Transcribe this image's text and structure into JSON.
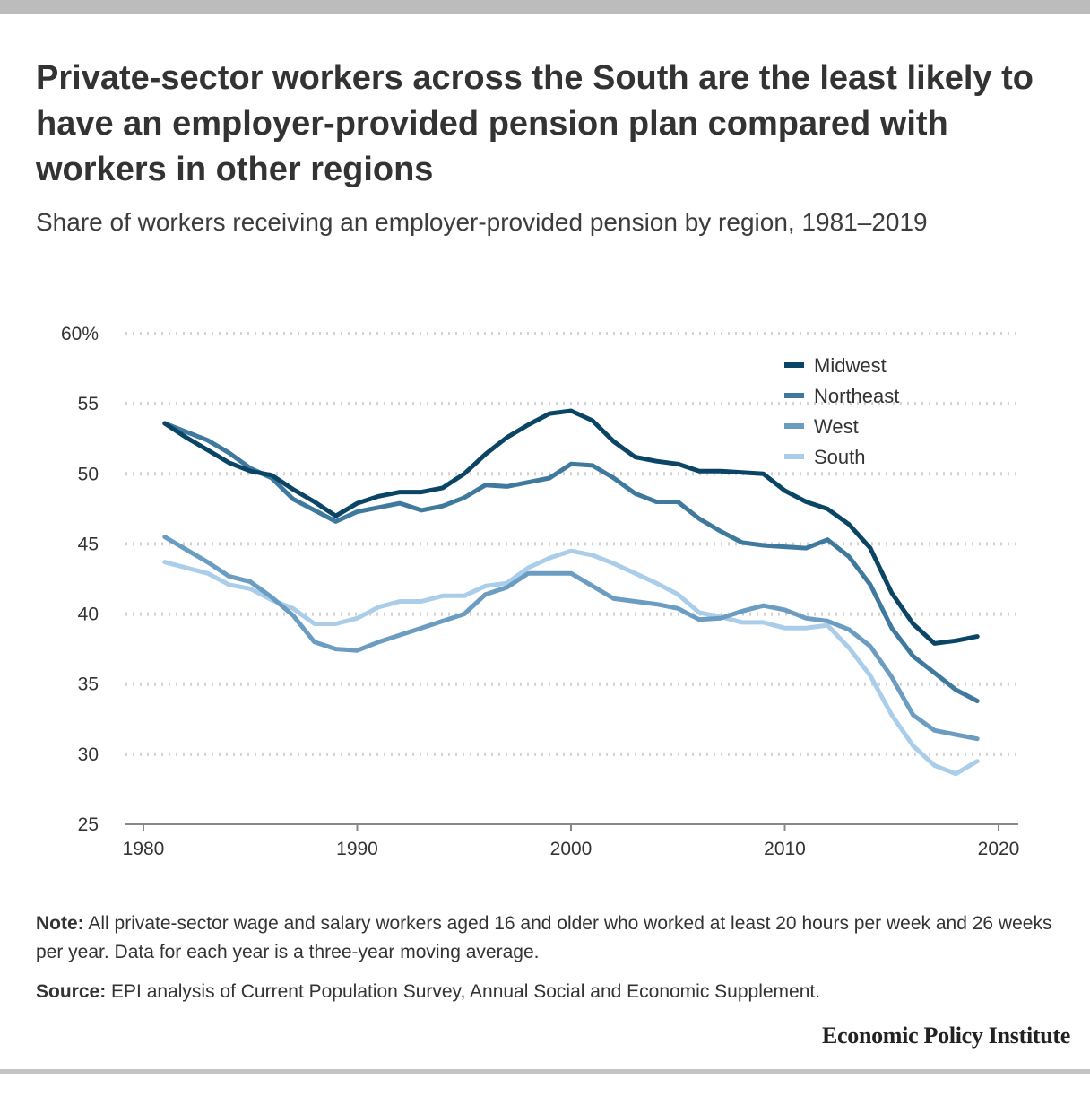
{
  "header": {
    "title": "Private-sector workers across the South are the least likely to have an employer-provided pension plan compared with workers in other regions",
    "subtitle": "Share of workers receiving an employer-provided pension by region, 1981–2019"
  },
  "footer": {
    "note_label": "Note:",
    "note_text": " All private-sector wage and salary workers aged 16 and older who worked at least 20 hours per week and 26 weeks per year. Data for each year is a three-year moving average.",
    "source_label": "Source:",
    "source_text": " EPI analysis of Current Population Survey, Annual Social and Economic Supplement.",
    "brand": "Economic Policy Institute"
  },
  "chart_data": {
    "type": "line",
    "title": "Private-sector workers across the South are the least likely to have an employer-provided pension plan compared with workers in other regions",
    "subtitle": "Share of workers receiving an employer-provided pension by region, 1981–2019",
    "xlabel": "",
    "ylabel": "",
    "xlim": [
      1980,
      2020
    ],
    "ylim": [
      25,
      60
    ],
    "x_ticks": [
      1980,
      1990,
      2000,
      2010,
      2020
    ],
    "y_ticks": [
      25,
      30,
      35,
      40,
      45,
      50,
      55,
      60
    ],
    "y_tick_labels": [
      "25",
      "30",
      "35",
      "40",
      "45",
      "50",
      "55",
      "60%"
    ],
    "grid": "horizontal dotted",
    "legend_position": "top-right",
    "x": [
      1981,
      1982,
      1983,
      1984,
      1985,
      1986,
      1987,
      1988,
      1989,
      1990,
      1991,
      1992,
      1993,
      1994,
      1995,
      1996,
      1997,
      1998,
      1999,
      2000,
      2001,
      2002,
      2003,
      2004,
      2005,
      2006,
      2007,
      2008,
      2009,
      2010,
      2011,
      2012,
      2013,
      2014,
      2015,
      2016,
      2017,
      2018,
      2019
    ],
    "series": [
      {
        "name": "Midwest",
        "color": "#0b4566",
        "values": [
          53.6,
          52.6,
          51.7,
          50.8,
          50.2,
          49.9,
          48.9,
          48.0,
          47.0,
          47.9,
          48.4,
          48.7,
          48.7,
          49.0,
          50.0,
          51.4,
          52.6,
          53.5,
          54.3,
          54.5,
          53.8,
          52.3,
          51.2,
          50.9,
          50.7,
          50.2,
          50.2,
          50.1,
          50.0,
          48.8,
          48.0,
          47.5,
          46.4,
          44.7,
          41.5,
          39.3,
          37.9,
          38.1,
          38.4
        ]
      },
      {
        "name": "Northeast",
        "color": "#3f7a9e",
        "values": [
          53.6,
          53.0,
          52.4,
          51.5,
          50.4,
          49.7,
          48.2,
          47.4,
          46.6,
          47.3,
          47.6,
          47.9,
          47.4,
          47.7,
          48.3,
          49.2,
          49.1,
          49.4,
          49.7,
          50.7,
          50.6,
          49.7,
          48.6,
          48.0,
          48.0,
          46.8,
          45.9,
          45.1,
          44.9,
          44.8,
          44.7,
          45.3,
          44.1,
          42.1,
          39.0,
          37.0,
          35.8,
          34.6,
          33.8
        ]
      },
      {
        "name": "West",
        "color": "#6b9cc1",
        "values": [
          45.5,
          44.6,
          43.7,
          42.7,
          42.3,
          41.2,
          39.9,
          38.0,
          37.5,
          37.4,
          38.0,
          38.5,
          39.0,
          39.5,
          40.0,
          41.4,
          41.9,
          42.9,
          42.9,
          42.9,
          42.0,
          41.1,
          40.9,
          40.7,
          40.4,
          39.6,
          39.7,
          40.2,
          40.6,
          40.3,
          39.7,
          39.5,
          38.9,
          37.7,
          35.5,
          32.8,
          31.7,
          31.4,
          31.1
        ]
      },
      {
        "name": "South",
        "color": "#aacdea",
        "values": [
          43.7,
          43.3,
          42.9,
          42.1,
          41.8,
          41.0,
          40.4,
          39.3,
          39.3,
          39.7,
          40.5,
          40.9,
          40.9,
          41.3,
          41.3,
          42.0,
          42.2,
          43.3,
          44.0,
          44.5,
          44.2,
          43.6,
          42.9,
          42.2,
          41.4,
          40.1,
          39.8,
          39.4,
          39.4,
          39.0,
          39.0,
          39.2,
          37.6,
          35.6,
          32.8,
          30.6,
          29.2,
          28.6,
          29.5
        ]
      }
    ]
  }
}
